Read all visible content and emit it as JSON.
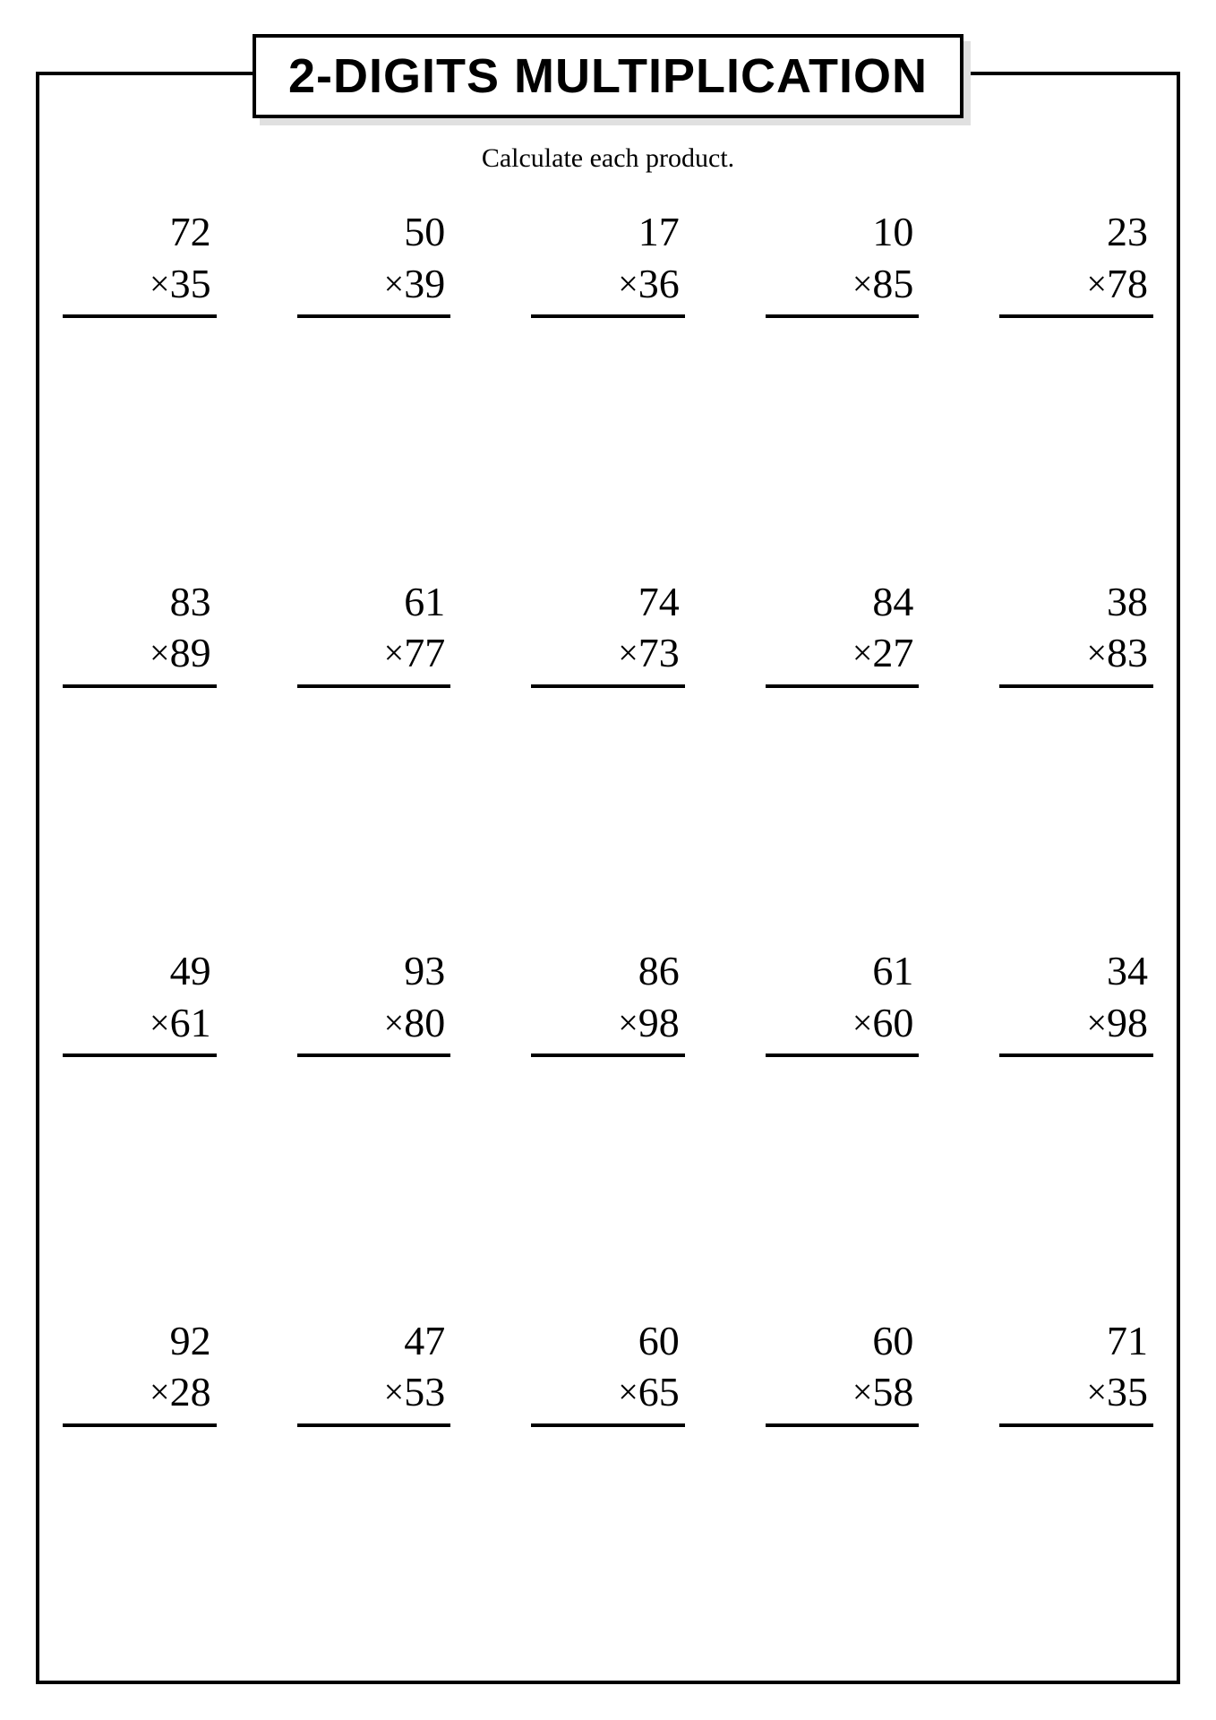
{
  "title": "2-DIGITS MULTIPLICATION",
  "subtitle": "Calculate each product.",
  "mult_sign": "×",
  "colors": {
    "text": "#000000",
    "background": "#ffffff",
    "border": "#000000",
    "shadow": "#e0e0e0"
  },
  "typography": {
    "title_fontsize": 54,
    "subtitle_fontsize": 30,
    "problem_fontsize": 46
  },
  "layout": {
    "cols": 5,
    "rows": 4
  },
  "problems": [
    {
      "a": "72",
      "b": "35"
    },
    {
      "a": "50",
      "b": "39"
    },
    {
      "a": "17",
      "b": "36"
    },
    {
      "a": "10",
      "b": "85"
    },
    {
      "a": "23",
      "b": "78"
    },
    {
      "a": "83",
      "b": "89"
    },
    {
      "a": "61",
      "b": "77"
    },
    {
      "a": "74",
      "b": "73"
    },
    {
      "a": "84",
      "b": "27"
    },
    {
      "a": "38",
      "b": "83"
    },
    {
      "a": "49",
      "b": "61"
    },
    {
      "a": "93",
      "b": "80"
    },
    {
      "a": "86",
      "b": "98"
    },
    {
      "a": "61",
      "b": "60"
    },
    {
      "a": "34",
      "b": "98"
    },
    {
      "a": "92",
      "b": "28"
    },
    {
      "a": "47",
      "b": "53"
    },
    {
      "a": "60",
      "b": "65"
    },
    {
      "a": "60",
      "b": "58"
    },
    {
      "a": "71",
      "b": "35"
    }
  ]
}
